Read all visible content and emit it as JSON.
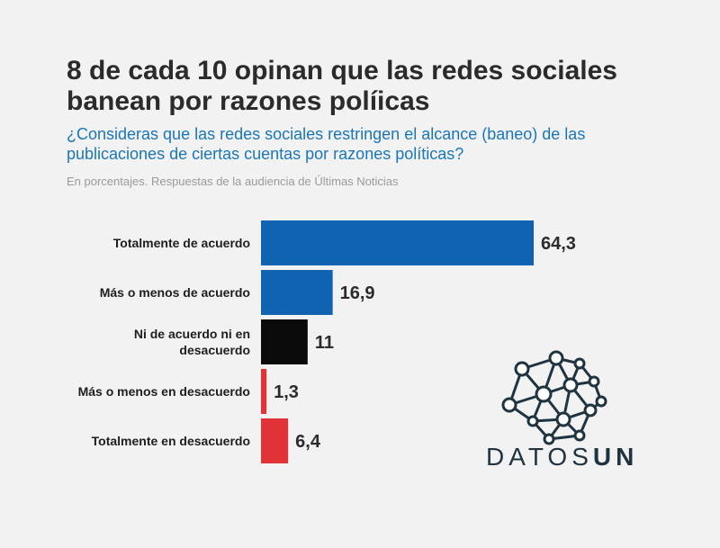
{
  "chart_data": {
    "type": "bar",
    "orientation": "horizontal",
    "title": "8 de cada 10 opinan que las redes sociales banean por razones políicas",
    "subtitle": "¿Consideras que las redes sociales restringen el alcance (baneo) de las publicaciones de ciertas cuentas por razones políticas?",
    "note": "En porcentajes. Respuestas de la audiencia de Últimas Noticias",
    "categories": [
      [
        "Totalmente de acuerdo"
      ],
      [
        "Más o menos de acuerdo"
      ],
      [
        "Ni de acuerdo ni en",
        "desacuerdo"
      ],
      [
        "Más o menos en desacuerdo"
      ],
      [
        "Totalmente en desacuerdo"
      ]
    ],
    "values": [
      64.3,
      16.9,
      11,
      1.3,
      6.4
    ],
    "value_labels": [
      "64,3",
      "16,9",
      "11",
      "1,3",
      "6,4"
    ],
    "colors": [
      "#0f63b1",
      "#0f63b1",
      "#0a0a0a",
      "#e03237",
      "#e03237"
    ],
    "xlim": [
      0,
      64.3
    ]
  },
  "brand": {
    "name_light": "DATOS",
    "name_bold": "UN"
  }
}
